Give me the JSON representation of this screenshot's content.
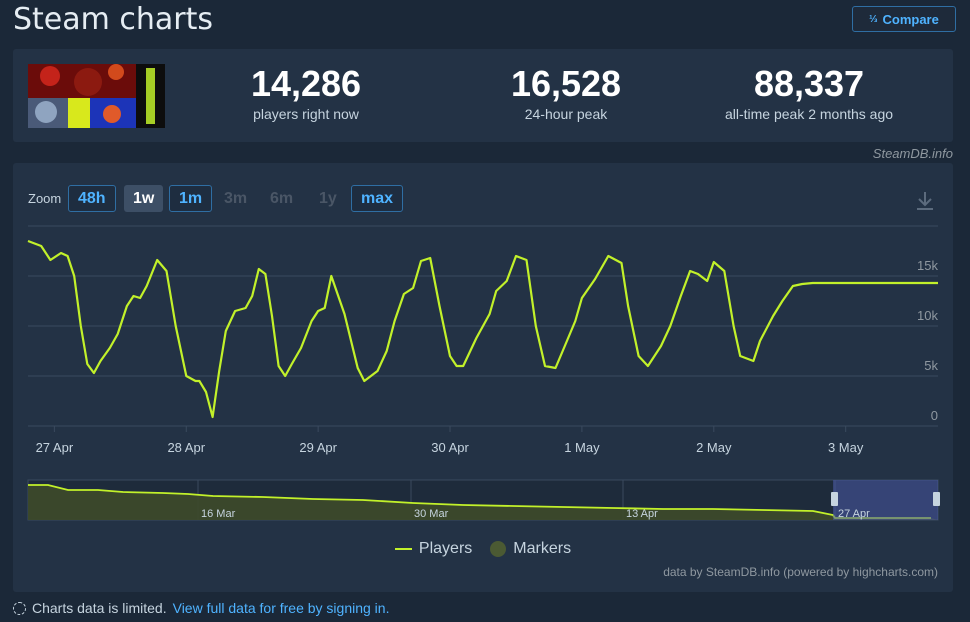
{
  "page": {
    "title": "Steam charts",
    "compare_label": "Compare",
    "compare_icon": "1/2/3 ranking icon"
  },
  "stats": [
    {
      "value": "14,286",
      "label": "players right now"
    },
    {
      "value": "16,528",
      "label": "24-hour peak"
    },
    {
      "value": "88,337",
      "label": "all-time peak 2 months ago"
    }
  ],
  "attribution": "SteamDB.info",
  "zoom": {
    "label": "Zoom",
    "options": [
      {
        "label": "48h",
        "state": "available"
      },
      {
        "label": "1w",
        "state": "selected"
      },
      {
        "label": "1m",
        "state": "available"
      },
      {
        "label": "3m",
        "state": "disabled"
      },
      {
        "label": "6m",
        "state": "disabled"
      },
      {
        "label": "1y",
        "state": "disabled"
      },
      {
        "label": "max",
        "state": "available"
      }
    ]
  },
  "legend": {
    "players": "Players",
    "markers": "Markers"
  },
  "credits": "data by SteamDB.info (powered by highcharts.com)",
  "notice": {
    "text": "Charts data is limited.",
    "link": "View full data for free by signing in."
  },
  "colors": {
    "line": "#c2f12a",
    "accent": "#4fb3ff",
    "background": "#1b2838",
    "panel": "#233245"
  },
  "chart_data": {
    "type": "line",
    "series": [
      {
        "name": "Players",
        "x": [
          26.8,
          26.9,
          26.97,
          27.05,
          27.1,
          27.15,
          27.2,
          27.25,
          27.3,
          27.35,
          27.42,
          27.48,
          27.55,
          27.6,
          27.65,
          27.7,
          27.78,
          27.85,
          27.92,
          28.0,
          28.07,
          28.1,
          28.15,
          28.2,
          28.25,
          28.3,
          28.37,
          28.45,
          28.5,
          28.55,
          28.6,
          28.65,
          28.7,
          28.75,
          28.8,
          28.87,
          28.95,
          29.0,
          29.05,
          29.1,
          29.2,
          29.3,
          29.35,
          29.45,
          29.52,
          29.58,
          29.65,
          29.72,
          29.78,
          29.85,
          29.92,
          30.0,
          30.05,
          30.1,
          30.2,
          30.3,
          30.35,
          30.43,
          30.5,
          30.58,
          30.65,
          30.72,
          30.8,
          30.87,
          30.95,
          31.0,
          31.1,
          31.2,
          31.3,
          31.35,
          31.43,
          31.5,
          31.6,
          31.67,
          31.75,
          31.82,
          31.88,
          31.95,
          32.0,
          32.08,
          32.15,
          32.2,
          32.3,
          32.35,
          32.45,
          32.52,
          32.6,
          32.67,
          32.75,
          32.82,
          32.88,
          32.95,
          33.0,
          33.07,
          33.12,
          33.2,
          33.25,
          33.32,
          33.38,
          33.45,
          33.5,
          33.57,
          33.6,
          33.7
        ],
        "values": [
          18500,
          18000,
          16600,
          17300,
          17000,
          15000,
          10000,
          6200,
          5300,
          6500,
          7800,
          9200,
          12000,
          13000,
          12800,
          14000,
          16600,
          15500,
          10000,
          5000,
          4500,
          4500,
          3400,
          900,
          5500,
          9500,
          11500,
          11800,
          13000,
          15700,
          15200,
          11000,
          6000,
          5000,
          6200,
          7800,
          10500,
          11500,
          11800,
          15000,
          11200,
          5800,
          4500,
          5500,
          7500,
          10500,
          13200,
          13800,
          16500,
          16800,
          12000,
          7000,
          6000,
          6000,
          8800,
          11200,
          13500,
          14500,
          17000,
          16600,
          10000,
          6000,
          5800,
          8000,
          10500,
          12800,
          14700,
          17000,
          16300,
          12000,
          7000,
          6000,
          8000,
          10000,
          13000,
          15500,
          15200,
          14500,
          16400,
          15500,
          10000,
          7000,
          6500,
          8500,
          11000,
          12500,
          14000,
          14200,
          14300,
          14300,
          14300,
          14300,
          14300,
          14300,
          14300,
          14300,
          14300,
          14300,
          14300,
          14300,
          14300,
          14300,
          14300,
          14300
        ]
      }
    ],
    "x_tick_labels": [
      "27 Apr",
      "28 Apr",
      "29 Apr",
      "30 Apr",
      "1 May",
      "2 May",
      "3 May"
    ],
    "y_tick_labels": [
      "0",
      "5k",
      "10k",
      "15k"
    ],
    "ylim": [
      0,
      20000
    ],
    "grid": true,
    "navigator_tick_labels": [
      "16 Mar",
      "30 Mar",
      "13 Apr",
      "27 Apr"
    ],
    "legend_placement": "bottom-center"
  }
}
